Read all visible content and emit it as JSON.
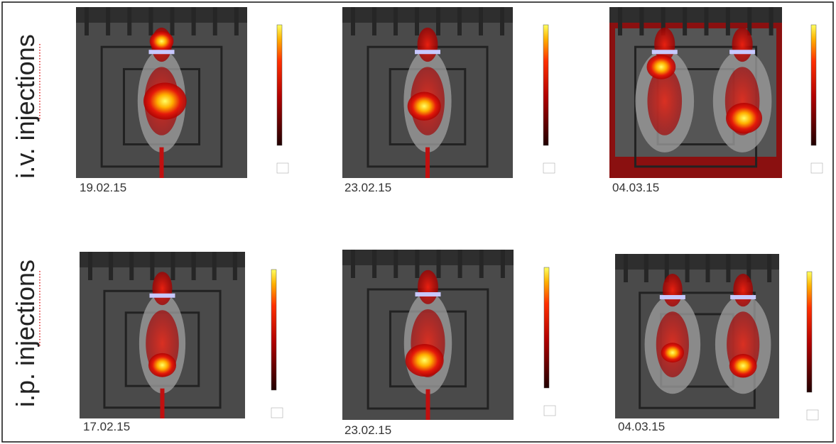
{
  "rows": [
    {
      "label": "i.v. injections",
      "dates": [
        "19.02.15",
        "23.02.15",
        "04.03.15"
      ]
    },
    {
      "label": "i.p. injections",
      "dates": [
        "17.02.15",
        "23.02.15",
        "04.03.15"
      ]
    }
  ]
}
